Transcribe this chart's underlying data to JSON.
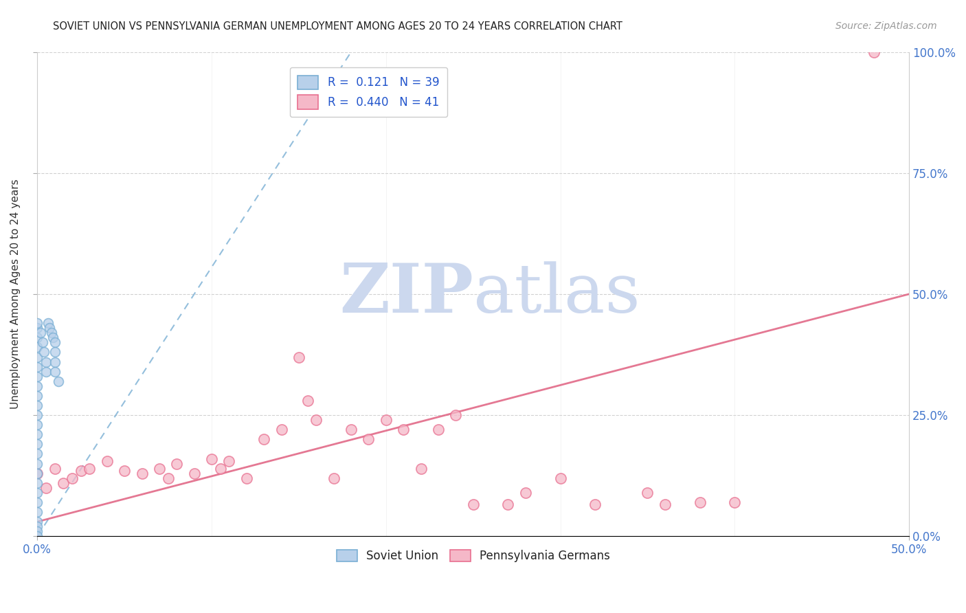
{
  "title": "SOVIET UNION VS PENNSYLVANIA GERMAN UNEMPLOYMENT AMONG AGES 20 TO 24 YEARS CORRELATION CHART",
  "source": "Source: ZipAtlas.com",
  "ylabel": "Unemployment Among Ages 20 to 24 years",
  "xlim": [
    0.0,
    0.5
  ],
  "ylim": [
    0.0,
    1.0
  ],
  "xtick_positions": [
    0.0,
    0.5
  ],
  "xtick_labels": [
    "0.0%",
    "50.0%"
  ],
  "ytick_positions": [
    0.0,
    0.25,
    0.5,
    0.75,
    1.0
  ],
  "ytick_labels_left": [
    "",
    "",
    "",
    "",
    ""
  ],
  "ytick_labels_right": [
    "0.0%",
    "25.0%",
    "50.0%",
    "75.0%",
    "100.0%"
  ],
  "legend_entries": [
    {
      "label": "Soviet Union",
      "face_color": "#b8d0ea",
      "edge_color": "#7aafd4",
      "R": 0.121,
      "N": 39
    },
    {
      "label": "Pennsylvania Germans",
      "face_color": "#f5b8c8",
      "edge_color": "#e87090",
      "R": 0.44,
      "N": 41
    }
  ],
  "blue_scatter_x": [
    0.0,
    0.0,
    0.0,
    0.0,
    0.0,
    0.0,
    0.0,
    0.0,
    0.0,
    0.0,
    0.0,
    0.0,
    0.0,
    0.0,
    0.0,
    0.0,
    0.0,
    0.0,
    0.0,
    0.0,
    0.0,
    0.0,
    0.0,
    0.0,
    0.0,
    0.002,
    0.003,
    0.004,
    0.005,
    0.005,
    0.006,
    0.007,
    0.008,
    0.009,
    0.01,
    0.01,
    0.01,
    0.01,
    0.012
  ],
  "blue_scatter_y": [
    0.43,
    0.41,
    0.39,
    0.37,
    0.35,
    0.33,
    0.31,
    0.29,
    0.27,
    0.25,
    0.23,
    0.21,
    0.19,
    0.17,
    0.15,
    0.13,
    0.11,
    0.09,
    0.07,
    0.05,
    0.03,
    0.02,
    0.01,
    0.0,
    0.44,
    0.42,
    0.4,
    0.38,
    0.36,
    0.34,
    0.44,
    0.43,
    0.42,
    0.41,
    0.4,
    0.38,
    0.36,
    0.34,
    0.32
  ],
  "pink_scatter_x": [
    0.0,
    0.005,
    0.01,
    0.015,
    0.02,
    0.025,
    0.03,
    0.04,
    0.05,
    0.06,
    0.07,
    0.075,
    0.08,
    0.09,
    0.1,
    0.105,
    0.11,
    0.12,
    0.13,
    0.14,
    0.15,
    0.155,
    0.16,
    0.17,
    0.18,
    0.19,
    0.2,
    0.21,
    0.22,
    0.23,
    0.24,
    0.25,
    0.27,
    0.28,
    0.3,
    0.32,
    0.35,
    0.36,
    0.38,
    0.4,
    0.48
  ],
  "pink_scatter_y": [
    0.13,
    0.1,
    0.14,
    0.11,
    0.12,
    0.135,
    0.14,
    0.155,
    0.135,
    0.13,
    0.14,
    0.12,
    0.15,
    0.13,
    0.16,
    0.14,
    0.155,
    0.12,
    0.2,
    0.22,
    0.37,
    0.28,
    0.24,
    0.12,
    0.22,
    0.2,
    0.24,
    0.22,
    0.14,
    0.22,
    0.25,
    0.065,
    0.065,
    0.09,
    0.12,
    0.065,
    0.09,
    0.065,
    0.07,
    0.07,
    1.0
  ],
  "blue_trend_x": [
    0.0,
    0.18
  ],
  "blue_trend_y": [
    0.0,
    1.0
  ],
  "pink_trend_x": [
    0.0,
    0.5
  ],
  "pink_trend_y": [
    0.03,
    0.5
  ],
  "blue_line_color": "#7aafd4",
  "pink_line_color": "#e06080",
  "watermark_zip": "ZIP",
  "watermark_atlas": "atlas",
  "watermark_color": "#ccd8ee",
  "background_color": "#ffffff",
  "grid_color": "#cccccc"
}
